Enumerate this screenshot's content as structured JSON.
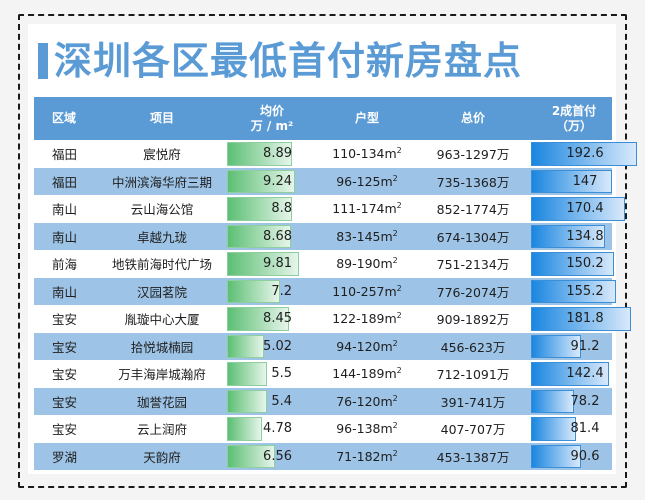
{
  "title": "深圳各区最低首付新房盘点",
  "colors": {
    "accent": "#5b9bd5",
    "row_alt": "#9dc3e6",
    "price_bar": "#5cbf74",
    "down_bar": "#1a86e0"
  },
  "table": {
    "headers": {
      "region": "区域",
      "project": "项目",
      "price_line1": "均价",
      "price_line2": "万 / m²",
      "type": "户型",
      "total": "总价",
      "down_line1": "2成首付",
      "down_line2": "（万）"
    },
    "rows": [
      {
        "region": "福田",
        "project": "宸悦府",
        "price": "8.89",
        "type": "110-134m²",
        "total": "963-1297万",
        "down": "192.6"
      },
      {
        "region": "福田",
        "project": "中洲滨海华府三期",
        "price": "9.24",
        "type": "96-125m²",
        "total": "735-1368万",
        "down": "147"
      },
      {
        "region": "南山",
        "project": "云山海公馆",
        "price": "8.8",
        "type": "111-174m²",
        "total": "852-1774万",
        "down": "170.4"
      },
      {
        "region": "南山",
        "project": "卓越九珑",
        "price": "8.68",
        "type": "83-145m²",
        "total": "674-1304万",
        "down": "134.8"
      },
      {
        "region": "前海",
        "project": "地铁前海时代广场",
        "price": "9.81",
        "type": "89-190m²",
        "total": "751-2134万",
        "down": "150.2"
      },
      {
        "region": "南山",
        "project": "汉园茗院",
        "price": "7.2",
        "type": "110-257m²",
        "total": "776-2074万",
        "down": "155.2"
      },
      {
        "region": "宝安",
        "project": "胤璇中心大厦",
        "price": "8.45",
        "type": "122-189m²",
        "total": "909-1892万",
        "down": "181.8"
      },
      {
        "region": "宝安",
        "project": "拾悦城楠园",
        "price": "5.02",
        "type": "94-120m²",
        "total": "456-623万",
        "down": "91.2"
      },
      {
        "region": "宝安",
        "project": "万丰海岸城瀚府",
        "price": "5.5",
        "type": "144-189m²",
        "total": "712-1091万",
        "down": "142.4"
      },
      {
        "region": "宝安",
        "project": "珈誉花园",
        "price": "5.4",
        "type": "76-120m²",
        "total": "391-741万",
        "down": "78.2"
      },
      {
        "region": "宝安",
        "project": "云上润府",
        "price": "4.78",
        "type": "96-138m²",
        "total": "407-707万",
        "down": "81.4"
      },
      {
        "region": "罗湖",
        "project": "天韵府",
        "price": "6.56",
        "type": "71-182m²",
        "total": "453-1387万",
        "down": "90.6"
      }
    ]
  }
}
